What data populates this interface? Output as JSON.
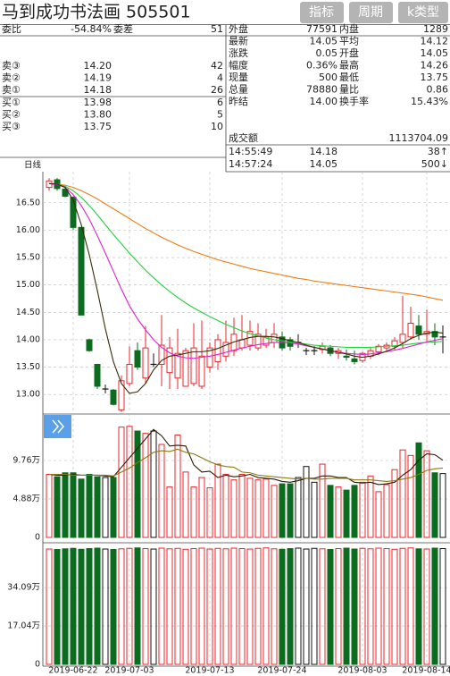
{
  "header": {
    "title": "马到成功书法画 505501",
    "buttons": [
      "指标",
      "周期",
      "k类型"
    ]
  },
  "summary": [
    [
      "委比",
      "-54.84%",
      "委差",
      "51"
    ]
  ],
  "asks": [
    [
      "卖③",
      "14.20",
      "42"
    ],
    [
      "卖②",
      "14.19",
      "4"
    ],
    [
      "卖①",
      "14.18",
      "26"
    ]
  ],
  "bids": [
    [
      "买①",
      "13.98",
      "6"
    ],
    [
      "买②",
      "13.80",
      "5"
    ],
    [
      "买③",
      "13.75",
      "10"
    ]
  ],
  "stats": [
    [
      "外盘",
      "77591",
      "内盘",
      "1289"
    ],
    [
      "最新",
      "14.05",
      "平均",
      "14.12"
    ],
    [
      "涨跌",
      "0.05",
      "开盘",
      "14.05"
    ],
    [
      "幅度",
      "0.36%",
      "最高",
      "14.26"
    ],
    [
      "现量",
      "500",
      "最低",
      "13.75"
    ],
    [
      "总量",
      "78880",
      "量比",
      "0.86"
    ],
    [
      "昨结",
      "14.00",
      "换手率",
      "15.43%"
    ]
  ],
  "turnover": [
    "成交额",
    "1113704.09"
  ],
  "trades": [
    [
      "14:55:49",
      "14.18",
      "38↑"
    ],
    [
      "14:57:24",
      "14.05",
      "500↓"
    ]
  ],
  "chart_data": {
    "type": "candlestick",
    "label": "日线",
    "categories": [
      null,
      null,
      null,
      "2019-06-22",
      null,
      null,
      null,
      null,
      null,
      null,
      "2019-07-03",
      null,
      null,
      null,
      null,
      null,
      null,
      null,
      null,
      null,
      "2019-07-13",
      null,
      null,
      null,
      null,
      null,
      null,
      null,
      null,
      "2019-07-24",
      null,
      null,
      null,
      null,
      null,
      null,
      null,
      null,
      null,
      "2019-08-03",
      null,
      null,
      null,
      null,
      null,
      null,
      null,
      "2019-08-14",
      null,
      null
    ],
    "open": [
      16.78,
      16.92,
      16.75,
      16.6,
      16.05,
      14.0,
      13.55,
      13.1,
      13.08,
      12.72,
      13.2,
      13.8,
      13.3,
      13.55,
      13.55,
      13.4,
      13.3,
      13.15,
      13.2,
      13.15,
      13.5,
      13.6,
      13.7,
      13.8,
      13.85,
      13.9,
      13.85,
      13.9,
      13.95,
      14.05,
      14.0,
      13.95,
      13.8,
      13.8,
      13.82,
      13.85,
      13.75,
      13.7,
      13.65,
      13.62,
      13.7,
      13.78,
      13.85,
      13.88,
      13.95,
      14.05,
      14.25,
      14.1,
      14.15,
      14.05
    ],
    "high": [
      16.95,
      16.95,
      16.8,
      16.62,
      16.05,
      14.02,
      13.56,
      13.18,
      13.1,
      13.35,
      13.88,
      13.95,
      14.25,
      13.75,
      14.45,
      14.05,
      14.2,
      13.85,
      14.3,
      14.35,
      13.95,
      14.1,
      14.35,
      14.4,
      14.45,
      14.35,
      14.3,
      14.2,
      14.3,
      14.15,
      14.05,
      14.1,
      13.85,
      13.88,
      13.95,
      13.9,
      13.85,
      13.82,
      13.8,
      13.78,
      13.85,
      13.92,
      13.95,
      14.05,
      14.8,
      14.6,
      14.45,
      14.55,
      14.3,
      14.26
    ],
    "low": [
      16.72,
      16.72,
      16.6,
      16.0,
      14.45,
      13.78,
      13.1,
      13.02,
      12.8,
      12.68,
      13.15,
      13.45,
      13.2,
      13.5,
      13.15,
      13.1,
      13.1,
      13.15,
      13.15,
      13.1,
      13.4,
      13.45,
      13.6,
      13.7,
      13.8,
      13.8,
      13.8,
      13.85,
      13.85,
      13.8,
      13.8,
      13.85,
      13.72,
      13.72,
      13.75,
      13.7,
      13.65,
      13.62,
      13.55,
      13.58,
      13.65,
      13.72,
      13.8,
      13.82,
      13.85,
      14.0,
      14.0,
      13.95,
      13.9,
      13.75
    ],
    "close": [
      16.9,
      16.76,
      16.62,
      16.05,
      14.45,
      13.8,
      13.15,
      13.1,
      12.82,
      13.25,
      13.55,
      13.5,
      13.85,
      13.55,
      13.9,
      13.85,
      13.75,
      13.8,
      13.85,
      13.7,
      13.85,
      14.0,
      13.95,
      14.1,
      14.0,
      14.15,
      14.1,
      14.05,
      14.1,
      13.85,
      13.88,
      13.95,
      13.8,
      13.8,
      13.88,
      13.75,
      13.8,
      13.68,
      13.6,
      13.75,
      13.8,
      13.88,
      13.9,
      13.98,
      14.1,
      14.3,
      14.1,
      14.15,
      14.05,
      14.05
    ],
    "ylim": [
      12.66,
      17.1
    ],
    "yticks": [
      {
        "value": 16.5,
        "label": "16.50"
      },
      {
        "value": 16,
        "label": "16.00"
      },
      {
        "value": 15.5,
        "label": "15.50"
      },
      {
        "value": 15,
        "label": "15.00"
      },
      {
        "value": 14.5,
        "label": "14.50"
      },
      {
        "value": 14,
        "label": "14.00"
      },
      {
        "value": 13.5,
        "label": "13.50"
      },
      {
        "value": 13,
        "label": "13.00"
      }
    ],
    "grid": true,
    "up_color": "#e8262b",
    "down_color": "#0b6b1e",
    "flat_color": "#111111",
    "ma": [
      {
        "color": "#f07c12",
        "values": [
          16.85,
          16.84,
          16.82,
          16.78,
          16.72,
          16.65,
          16.57,
          16.48,
          16.39,
          16.3,
          16.21,
          16.12,
          16.03,
          15.95,
          15.87,
          15.8,
          15.73,
          15.67,
          15.61,
          15.56,
          15.51,
          15.46,
          15.42,
          15.38,
          15.34,
          15.3,
          15.27,
          15.24,
          15.21,
          15.18,
          15.15,
          15.12,
          15.1,
          15.07,
          15.05,
          15.03,
          15.01,
          14.99,
          14.97,
          14.95,
          14.93,
          14.91,
          14.89,
          14.87,
          14.85,
          14.83,
          14.81,
          14.78,
          14.75,
          14.72
        ]
      },
      {
        "color": "#22d13a",
        "values": [
          16.85,
          16.84,
          16.8,
          16.72,
          16.6,
          16.45,
          16.28,
          16.1,
          15.92,
          15.75,
          15.58,
          15.42,
          15.27,
          15.13,
          15.0,
          14.88,
          14.77,
          14.67,
          14.58,
          14.5,
          14.42,
          14.35,
          14.28,
          14.22,
          14.16,
          14.11,
          14.07,
          14.03,
          14.0,
          13.98,
          13.96,
          13.94,
          13.92,
          13.9,
          13.89,
          13.88,
          13.87,
          13.86,
          13.86,
          13.86,
          13.86,
          13.87,
          13.88,
          13.89,
          13.9,
          13.92,
          13.94,
          13.95,
          13.96,
          13.97
        ]
      },
      {
        "color": "#e020d0",
        "values": [
          16.85,
          16.83,
          16.78,
          16.65,
          16.45,
          16.2,
          15.9,
          15.58,
          15.25,
          14.92,
          14.62,
          14.38,
          14.18,
          14.0,
          13.86,
          13.76,
          13.7,
          13.67,
          13.66,
          13.68,
          13.7,
          13.73,
          13.77,
          13.81,
          13.85,
          13.88,
          13.91,
          13.93,
          13.95,
          13.95,
          13.94,
          13.92,
          13.89,
          13.86,
          13.83,
          13.8,
          13.77,
          13.75,
          13.74,
          13.73,
          13.74,
          13.76,
          13.78,
          13.81,
          13.84,
          13.88,
          13.92,
          13.96,
          13.99,
          14.02
        ]
      },
      {
        "color": "#3a2a05",
        "values": [
          16.85,
          16.84,
          16.78,
          16.55,
          16.1,
          15.55,
          14.9,
          14.2,
          13.6,
          13.2,
          13.02,
          13.05,
          13.2,
          13.45,
          13.62,
          13.7,
          13.72,
          13.75,
          13.78,
          13.78,
          13.8,
          13.84,
          13.9,
          13.96,
          14.0,
          14.04,
          14.06,
          14.06,
          14.05,
          14.02,
          13.98,
          13.95,
          13.9,
          13.86,
          13.83,
          13.8,
          13.77,
          13.74,
          13.7,
          13.68,
          13.7,
          13.74,
          13.79,
          13.85,
          13.93,
          14.02,
          14.08,
          14.12,
          14.14,
          14.12
        ]
      }
    ],
    "volume": {
      "ylim": [
        0,
        14.3
      ],
      "yticks": [
        {
          "value": 9.76,
          "label": "9.76万"
        },
        {
          "value": 4.88,
          "label": "4.88万"
        },
        0
      ],
      "values": [
        8.0,
        7.7,
        8.2,
        8.2,
        7.4,
        8.0,
        7.7,
        7.6,
        7.6,
        14.0,
        14.1,
        13.5,
        13.2,
        13.5,
        11.8,
        6.4,
        13.0,
        8.3,
        6.4,
        7.6,
        6.3,
        9.3,
        8.0,
        7.3,
        8.0,
        7.5,
        7.3,
        7.4,
        6.6,
        6.8,
        6.8,
        7.6,
        9.0,
        7.0,
        9.3,
        6.6,
        6.4,
        6.0,
        6.6,
        7.0,
        7.8,
        5.8,
        6.7,
        8.6,
        11.1,
        10.4,
        12.0,
        11.0,
        8.2,
        8.1
      ],
      "ma": [
        {
          "color": "#2a1a05",
          "values": [
            8.0,
            7.9,
            7.9,
            8.0,
            7.9,
            7.9,
            7.9,
            7.8,
            7.7,
            8.9,
            10.1,
            11.3,
            12.5,
            13.7,
            12.9,
            11.6,
            11.7,
            11.6,
            9.2,
            8.3,
            8.4,
            7.6,
            7.9,
            7.7,
            7.8,
            8.0,
            7.6,
            7.5,
            7.4,
            7.1,
            7.0,
            7.2,
            7.5,
            7.5,
            7.8,
            7.8,
            7.6,
            7.6,
            7.0,
            6.9,
            7.0,
            6.7,
            6.8,
            7.0,
            7.9,
            8.6,
            9.8,
            10.6,
            10.5,
            9.8
          ]
        },
        {
          "color": "#8a7a10",
          "values": [
            8.0,
            8.0,
            8.0,
            7.9,
            7.9,
            7.9,
            7.9,
            7.9,
            7.8,
            8.3,
            8.8,
            9.5,
            10.1,
            10.8,
            11.0,
            10.9,
            11.2,
            10.8,
            10.6,
            10.1,
            9.6,
            9.2,
            9.0,
            8.9,
            8.3,
            8.2,
            7.9,
            7.8,
            7.7,
            7.6,
            7.5,
            7.4,
            7.5,
            7.4,
            7.4,
            7.5,
            7.5,
            7.5,
            7.3,
            7.3,
            7.3,
            7.2,
            7.1,
            7.2,
            7.4,
            7.6,
            8.0,
            8.5,
            8.7,
            8.8
          ]
        }
      ]
    },
    "open_interest": {
      "ylim": [
        0,
        52
      ],
      "yticks": [
        {
          "value": 34.09,
          "label": "34.09万"
        },
        {
          "value": 17.04,
          "label": "17.04万"
        },
        0
      ],
      "values": [
        51.2,
        51.0,
        51.3,
        51.5,
        51.1,
        51.4,
        51.6,
        51.2,
        51.0,
        51.3,
        51.5,
        51.7,
        51.4,
        51.2,
        51.6,
        51.3,
        51.5,
        51.1,
        51.4,
        51.6,
        51.2,
        51.5,
        51.3,
        51.6,
        51.4,
        51.2,
        51.5,
        51.7,
        51.3,
        51.1,
        51.4,
        51.6,
        51.2,
        51.5,
        51.3,
        51.0,
        51.4,
        51.6,
        51.2,
        51.5,
        51.3,
        51.6,
        51.4,
        51.1,
        51.5,
        51.7,
        51.3,
        51.2,
        51.6,
        51.4
      ]
    }
  }
}
